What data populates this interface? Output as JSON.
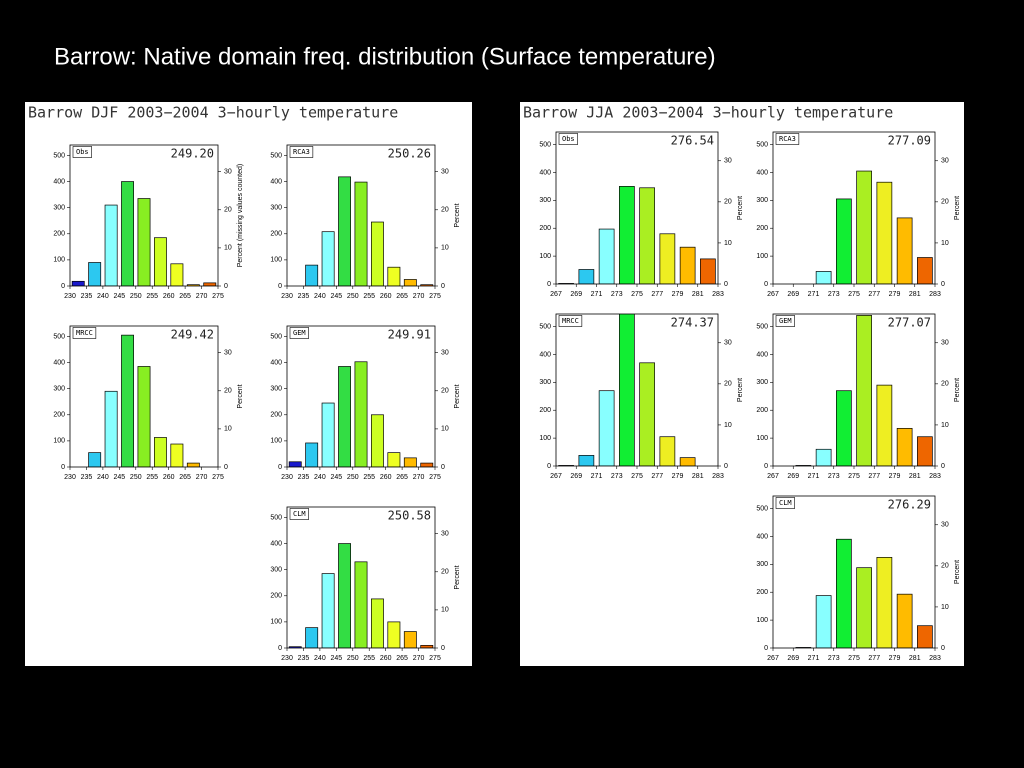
{
  "title": "Barrow: Native domain freq. distribution (Surface temperature)",
  "panels": [
    {
      "title": "Barrow DJF 2003−2004 3−hourly temperature",
      "charts": [
        {
          "type": "histogram",
          "name": "Obs",
          "annotation": "249.20",
          "bins": [
            230,
            235,
            240,
            245,
            250,
            255,
            260,
            265,
            270,
            275
          ],
          "values": [
            18,
            90,
            310,
            400,
            335,
            185,
            85,
            5,
            12
          ],
          "colors": [
            "#1a1acc",
            "#2cc8f0",
            "#88ffff",
            "#33dd44",
            "#88ee22",
            "#ccff22",
            "#eeff22",
            "#ffbb00",
            "#ee6600"
          ],
          "ylim": [
            0,
            540
          ],
          "yticks": [
            0,
            100,
            200,
            300,
            400,
            500
          ],
          "y2lim": [
            0,
            37
          ],
          "y2ticks": [
            0,
            10,
            20,
            30
          ],
          "y2label": "Percent (missing values counted)"
        },
        {
          "type": "histogram",
          "name": "RCA3",
          "annotation": "250.26",
          "bins": [
            230,
            235,
            240,
            245,
            250,
            255,
            260,
            265,
            270,
            275
          ],
          "values": [
            0,
            80,
            208,
            418,
            398,
            245,
            72,
            25,
            5
          ],
          "colors": [
            "#1a1acc",
            "#2cc8f0",
            "#88ffff",
            "#33dd44",
            "#88ee22",
            "#ccff22",
            "#eeff22",
            "#ffbb00",
            "#ee6600"
          ],
          "ylim": [
            0,
            540
          ],
          "yticks": [
            0,
            100,
            200,
            300,
            400,
            500
          ],
          "y2lim": [
            0,
            37
          ],
          "y2ticks": [
            0,
            10,
            20,
            30
          ],
          "y2label": "Percent"
        },
        {
          "type": "histogram",
          "name": "MRCC",
          "annotation": "249.42",
          "bins": [
            230,
            235,
            240,
            245,
            250,
            255,
            260,
            265,
            270,
            275
          ],
          "values": [
            0,
            55,
            290,
            505,
            385,
            113,
            88,
            15,
            0
          ],
          "colors": [
            "#1a1acc",
            "#2cc8f0",
            "#88ffff",
            "#33dd44",
            "#88ee22",
            "#ccff22",
            "#eeff22",
            "#ffbb00",
            "#ee6600"
          ],
          "ylim": [
            0,
            540
          ],
          "yticks": [
            0,
            100,
            200,
            300,
            400,
            500
          ],
          "y2lim": [
            0,
            37
          ],
          "y2ticks": [
            0,
            10,
            20,
            30
          ],
          "y2label": "Percent"
        },
        {
          "type": "histogram",
          "name": "GEM",
          "annotation": "249.91",
          "bins": [
            230,
            235,
            240,
            245,
            250,
            255,
            260,
            265,
            270,
            275
          ],
          "values": [
            20,
            92,
            245,
            385,
            403,
            200,
            55,
            35,
            15
          ],
          "colors": [
            "#1a1acc",
            "#2cc8f0",
            "#88ffff",
            "#33dd44",
            "#88ee22",
            "#ccff22",
            "#eeff22",
            "#ffbb00",
            "#ee6600"
          ],
          "ylim": [
            0,
            540
          ],
          "yticks": [
            0,
            100,
            200,
            300,
            400,
            500
          ],
          "y2lim": [
            0,
            37
          ],
          "y2ticks": [
            0,
            10,
            20,
            30
          ],
          "y2label": "Percent"
        },
        {
          "type": "histogram",
          "name": "CLM",
          "annotation": "250.58",
          "bins": [
            230,
            235,
            240,
            245,
            250,
            255,
            260,
            265,
            270,
            275
          ],
          "values": [
            5,
            78,
            285,
            400,
            330,
            188,
            100,
            63,
            10
          ],
          "colors": [
            "#1a1acc",
            "#2cc8f0",
            "#88ffff",
            "#33dd44",
            "#88ee22",
            "#ccff22",
            "#eeff22",
            "#ffbb00",
            "#ee6600"
          ],
          "ylim": [
            0,
            540
          ],
          "yticks": [
            0,
            100,
            200,
            300,
            400,
            500
          ],
          "y2lim": [
            0,
            37
          ],
          "y2ticks": [
            0,
            10,
            20,
            30
          ],
          "y2label": "Percent"
        }
      ]
    },
    {
      "title": "Barrow JJA 2003−2004 3−hourly temperature",
      "charts": [
        {
          "type": "histogram",
          "name": "Obs",
          "annotation": "276.54",
          "bins": [
            267,
            269,
            271,
            273,
            275,
            277,
            279,
            281,
            283
          ],
          "values": [
            2,
            52,
            197,
            350,
            345,
            180,
            132,
            90
          ],
          "colors": [
            "#1a1acc",
            "#2cc8f0",
            "#88ffff",
            "#11ee33",
            "#aaee22",
            "#eeee22",
            "#ffbb00",
            "#ee6600"
          ],
          "ylim": [
            0,
            545
          ],
          "yticks": [
            0,
            100,
            200,
            300,
            400,
            500
          ],
          "y2lim": [
            0,
            37
          ],
          "y2ticks": [
            0,
            10,
            20,
            30
          ],
          "y2label": "Percent"
        },
        {
          "type": "histogram",
          "name": "RCA3",
          "annotation": "277.09",
          "bins": [
            267,
            269,
            271,
            273,
            275,
            277,
            279,
            281,
            283
          ],
          "values": [
            0,
            0,
            45,
            305,
            405,
            365,
            237,
            95
          ],
          "colors": [
            "#1a1acc",
            "#2cc8f0",
            "#88ffff",
            "#11ee33",
            "#aaee22",
            "#eeee22",
            "#ffbb00",
            "#ee6600"
          ],
          "ylim": [
            0,
            545
          ],
          "yticks": [
            0,
            100,
            200,
            300,
            400,
            500
          ],
          "y2lim": [
            0,
            37
          ],
          "y2ticks": [
            0,
            10,
            20,
            30
          ],
          "y2label": "Percent"
        },
        {
          "type": "histogram",
          "name": "MRCC",
          "annotation": "274.37",
          "bins": [
            267,
            269,
            271,
            273,
            275,
            277,
            279,
            281,
            283
          ],
          "values": [
            2,
            38,
            270,
            550,
            370,
            105,
            30,
            0
          ],
          "colors": [
            "#1a1acc",
            "#2cc8f0",
            "#88ffff",
            "#11ee33",
            "#aaee22",
            "#eeee22",
            "#ffbb00",
            "#ee6600"
          ],
          "ylim": [
            0,
            545
          ],
          "yticks": [
            0,
            100,
            200,
            300,
            400,
            500
          ],
          "y2lim": [
            0,
            37
          ],
          "y2ticks": [
            0,
            10,
            20,
            30
          ],
          "y2label": "Percent"
        },
        {
          "type": "histogram",
          "name": "GEM",
          "annotation": "277.07",
          "bins": [
            267,
            269,
            271,
            273,
            275,
            277,
            279,
            281,
            283
          ],
          "values": [
            0,
            2,
            60,
            270,
            540,
            290,
            135,
            105
          ],
          "colors": [
            "#1a1acc",
            "#2cc8f0",
            "#88ffff",
            "#11ee33",
            "#aaee22",
            "#eeee22",
            "#ffbb00",
            "#ee6600"
          ],
          "ylim": [
            0,
            545
          ],
          "yticks": [
            0,
            100,
            200,
            300,
            400,
            500
          ],
          "y2lim": [
            0,
            37
          ],
          "y2ticks": [
            0,
            10,
            20,
            30
          ],
          "y2label": "Percent"
        },
        {
          "type": "histogram",
          "name": "CLM",
          "annotation": "276.29",
          "bins": [
            267,
            269,
            271,
            273,
            275,
            277,
            279,
            281,
            283
          ],
          "values": [
            0,
            2,
            188,
            390,
            288,
            325,
            193,
            80
          ],
          "colors": [
            "#1a1acc",
            "#2cc8f0",
            "#88ffff",
            "#11ee33",
            "#aaee22",
            "#eeee22",
            "#ffbb00",
            "#ee6600"
          ],
          "ylim": [
            0,
            545
          ],
          "yticks": [
            0,
            100,
            200,
            300,
            400,
            500
          ],
          "y2lim": [
            0,
            37
          ],
          "y2ticks": [
            0,
            10,
            20,
            30
          ],
          "y2label": "Percent"
        }
      ]
    }
  ]
}
